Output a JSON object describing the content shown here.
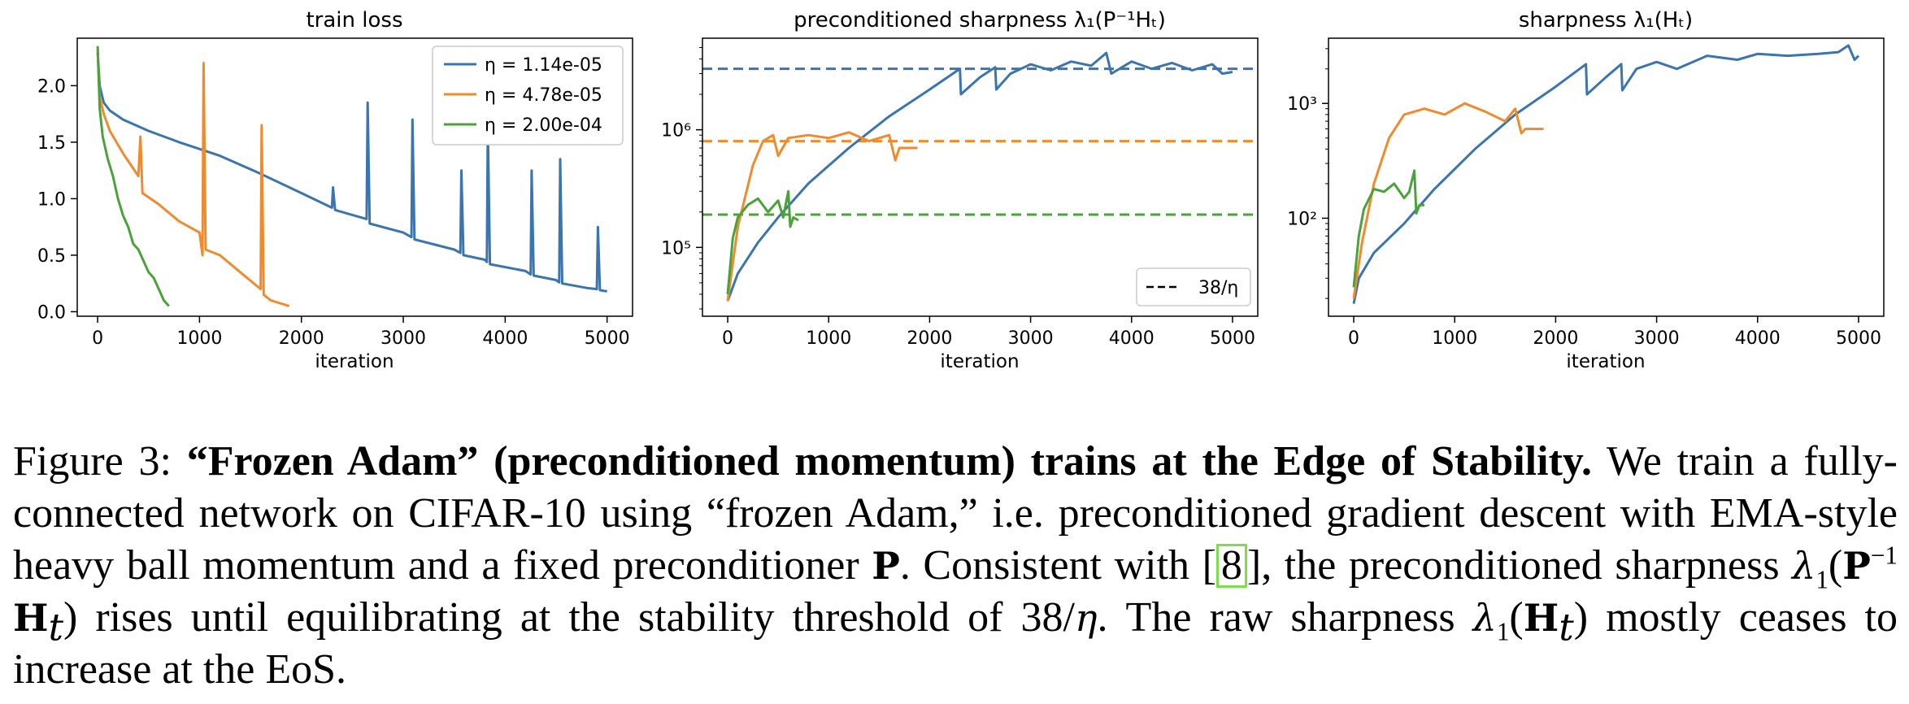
{
  "colors": {
    "blue": "#3a75b0",
    "orange": "#f08a2c",
    "green": "#4aa33a"
  },
  "legend": [
    {
      "label": "η = 1.14e-05",
      "color": "#3a75b0"
    },
    {
      "label": "η = 4.78e-05",
      "color": "#f08a2c"
    },
    {
      "label": "η = 2.00e-04",
      "color": "#4aa33a"
    }
  ],
  "threshold_legend": "38/η",
  "chart_data": [
    {
      "type": "line",
      "title": "train loss",
      "xlabel": "iteration",
      "xlim": [
        -200,
        5250
      ],
      "ylim": [
        -0.04,
        2.42
      ],
      "xticks": [
        0,
        1000,
        2000,
        3000,
        4000,
        5000
      ],
      "yticks": [
        0.0,
        0.5,
        1.0,
        1.5,
        2.0
      ],
      "ytick_labels": [
        "0.0",
        "0.5",
        "1.0",
        "1.5",
        "2.0"
      ],
      "series": [
        {
          "name": "η = 1.14e-05",
          "color": "#3a75b0",
          "x": [
            0,
            20,
            60,
            120,
            250,
            500,
            800,
            1200,
            1600,
            2000,
            2300,
            2310,
            2330,
            2640,
            2650,
            2670,
            3000,
            3080,
            3090,
            3110,
            3500,
            3560,
            3570,
            3590,
            3800,
            3820,
            3830,
            3850,
            4200,
            4250,
            4260,
            4280,
            4500,
            4530,
            4540,
            4560,
            4800,
            4900,
            4910,
            4930,
            5000
          ],
          "y": [
            2.3,
            2.0,
            1.85,
            1.78,
            1.7,
            1.6,
            1.5,
            1.38,
            1.22,
            1.05,
            0.92,
            1.1,
            0.9,
            0.82,
            1.85,
            0.78,
            0.7,
            0.66,
            1.7,
            0.64,
            0.55,
            0.52,
            1.25,
            0.5,
            0.46,
            0.44,
            1.65,
            0.42,
            0.36,
            0.33,
            1.25,
            0.32,
            0.28,
            0.26,
            1.35,
            0.25,
            0.21,
            0.2,
            0.75,
            0.19,
            0.18
          ]
        },
        {
          "name": "η = 4.78e-05",
          "color": "#f08a2c",
          "x": [
            0,
            20,
            60,
            120,
            250,
            400,
            420,
            440,
            600,
            800,
            1000,
            1030,
            1040,
            1060,
            1200,
            1400,
            1600,
            1610,
            1630,
            1700,
            1880
          ],
          "y": [
            2.3,
            1.9,
            1.75,
            1.6,
            1.4,
            1.2,
            1.55,
            1.05,
            0.95,
            0.8,
            0.7,
            0.5,
            2.2,
            0.55,
            0.5,
            0.35,
            0.2,
            1.65,
            0.15,
            0.1,
            0.05
          ]
        },
        {
          "name": "η = 2.00e-04",
          "color": "#4aa33a",
          "x": [
            0,
            20,
            50,
            100,
            150,
            200,
            250,
            300,
            350,
            400,
            450,
            500,
            550,
            600,
            650,
            700
          ],
          "y": [
            2.35,
            1.8,
            1.55,
            1.35,
            1.2,
            1.0,
            0.85,
            0.75,
            0.6,
            0.55,
            0.45,
            0.35,
            0.3,
            0.2,
            0.1,
            0.05
          ]
        }
      ]
    },
    {
      "type": "line",
      "title": "preconditioned sharpness λ₁(P⁻¹Hₜ)",
      "xlabel": "iteration",
      "yscale": "log",
      "xlim": [
        -250,
        5250
      ],
      "ylim": [
        26000,
        6000000
      ],
      "xticks": [
        0,
        1000,
        2000,
        3000,
        4000,
        5000
      ],
      "yticks": [
        100000,
        1000000
      ],
      "ytick_labels": [
        "10⁵",
        "10⁶"
      ],
      "thresholds": [
        {
          "value": 3300000,
          "color": "#3a75b0"
        },
        {
          "value": 800000,
          "color": "#f08a2c"
        },
        {
          "value": 190000,
          "color": "#4aa33a"
        }
      ],
      "series": [
        {
          "name": "η = 1.14e-05",
          "color": "#3a75b0",
          "x": [
            0,
            100,
            300,
            500,
            800,
            1200,
            1600,
            2000,
            2300,
            2310,
            2500,
            2650,
            2660,
            2800,
            3000,
            3200,
            3400,
            3600,
            3750,
            3800,
            4000,
            4200,
            4400,
            4600,
            4800,
            4900,
            5000
          ],
          "y": [
            35000,
            60000,
            110000,
            180000,
            350000,
            700000,
            1300000,
            2200000,
            3300000,
            2000000,
            2800000,
            3400000,
            2200000,
            3000000,
            3600000,
            3200000,
            3800000,
            3500000,
            4500000,
            3000000,
            3800000,
            3300000,
            3700000,
            3200000,
            3600000,
            3000000,
            3100000
          ]
        },
        {
          "name": "η = 4.78e-05",
          "color": "#f08a2c",
          "x": [
            0,
            100,
            250,
            350,
            450,
            500,
            600,
            800,
            1000,
            1200,
            1400,
            1600,
            1660,
            1700,
            1800,
            1880
          ],
          "y": [
            35000,
            150000,
            500000,
            800000,
            900000,
            600000,
            850000,
            900000,
            850000,
            950000,
            800000,
            900000,
            550000,
            700000,
            700000,
            700000
          ]
        },
        {
          "name": "η = 2.00e-04",
          "color": "#4aa33a",
          "x": [
            0,
            50,
            100,
            200,
            300,
            400,
            500,
            550,
            600,
            620,
            650,
            700
          ],
          "y": [
            40000,
            120000,
            180000,
            230000,
            260000,
            200000,
            250000,
            180000,
            300000,
            150000,
            180000,
            170000
          ]
        }
      ]
    },
    {
      "type": "line",
      "title": "sharpness λ₁(Hₜ)",
      "xlabel": "iteration",
      "yscale": "log",
      "xlim": [
        -250,
        5250
      ],
      "ylim": [
        14,
        3700
      ],
      "xticks": [
        0,
        1000,
        2000,
        3000,
        4000,
        5000
      ],
      "yticks": [
        100,
        1000
      ],
      "ytick_labels": [
        "10²",
        "10³"
      ],
      "series": [
        {
          "name": "η = 1.14e-05",
          "color": "#3a75b0",
          "x": [
            0,
            50,
            200,
            500,
            800,
            1200,
            1600,
            2000,
            2300,
            2310,
            2500,
            2650,
            2660,
            2800,
            3000,
            3200,
            3500,
            3800,
            4000,
            4300,
            4600,
            4800,
            4900,
            4960,
            5000
          ],
          "y": [
            18,
            30,
            50,
            90,
            180,
            400,
            800,
            1400,
            2200,
            1200,
            1700,
            2200,
            1300,
            2000,
            2300,
            2000,
            2600,
            2400,
            2700,
            2600,
            2700,
            2800,
            3200,
            2400,
            2600
          ]
        },
        {
          "name": "η = 4.78e-05",
          "color": "#f08a2c",
          "x": [
            0,
            80,
            200,
            350,
            500,
            700,
            900,
            1100,
            1300,
            1500,
            1600,
            1660,
            1700,
            1800,
            1880
          ],
          "y": [
            20,
            60,
            200,
            500,
            800,
            900,
            800,
            1000,
            850,
            700,
            900,
            550,
            600,
            600,
            600
          ]
        },
        {
          "name": "η = 2.00e-04",
          "color": "#4aa33a",
          "x": [
            0,
            50,
            100,
            200,
            300,
            400,
            500,
            550,
            600,
            620,
            650,
            700
          ],
          "y": [
            25,
            70,
            120,
            180,
            170,
            200,
            150,
            170,
            260,
            110,
            130,
            130
          ]
        }
      ]
    }
  ],
  "caption": {
    "figure_label": "Figure 3: ",
    "bold_title": "“Frozen Adam” (preconditioned momentum) trains at the Edge of Stability.",
    "text1": " We train a fully-connected network on CIFAR-10 using “frozen Adam,” i.e. preconditioned gradient descent with EMA-style heavy ball momentum and a fixed preconditioner ",
    "sym_P": "P",
    "text2": ". Consistent with [",
    "cite": "8",
    "text3": "], the preconditioned sharpness ",
    "lambda": "λ",
    "one": "1",
    "open_paren": "(",
    "sym_P2": "P",
    "minus_one": "−1",
    "sym_H": "H",
    "t": "t",
    "close_paren": ")",
    "text4": " rises until equilibrating at the stability threshold of 38/",
    "eta": "η",
    "text5": ". The raw sharpness ",
    "text6": " mostly ceases to increase at the EoS."
  }
}
